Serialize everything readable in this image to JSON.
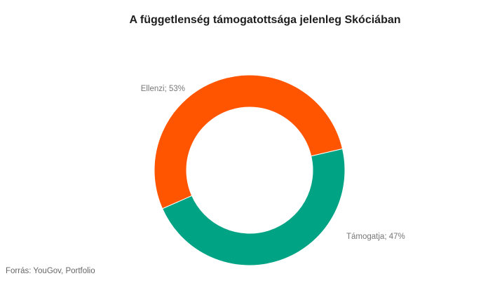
{
  "chart_data": {
    "type": "pie",
    "variant": "donut",
    "title": "A függetlenség támogatottsága jelenleg Skóciában",
    "slices": [
      {
        "label": "Ellenzi",
        "value": 53,
        "display": "Ellenzi;  53%",
        "color": "#ff5400"
      },
      {
        "label": "Támogatja",
        "value": 47,
        "display": "Támogatja;  47%",
        "color": "#00a383"
      }
    ],
    "start_angle_deg": 77,
    "legend": "none"
  },
  "footer": {
    "source": "Forrás:  YouGov,  Portfolio"
  }
}
